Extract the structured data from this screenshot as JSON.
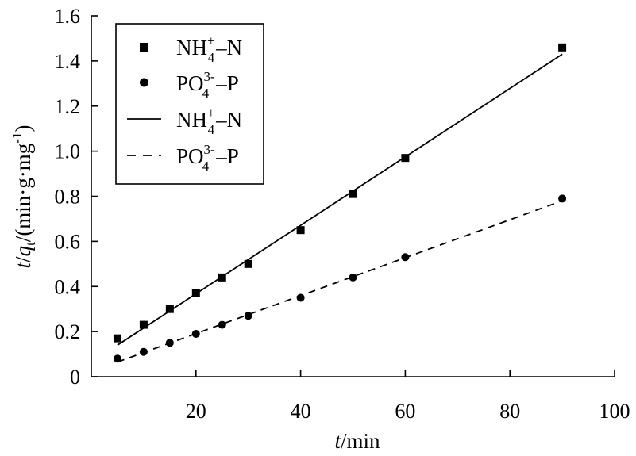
{
  "chart_data": {
    "type": "scatter",
    "title": "",
    "xlabel": {
      "var": "t",
      "unit": "/min"
    },
    "ylabel": {
      "var": "t",
      "slash": "/",
      "q": "q",
      "sub": "t",
      "unit": "/(min·g·mg",
      "sup": "-1",
      "close": ")"
    },
    "xlim": [
      0,
      100
    ],
    "ylim": [
      0,
      1.6
    ],
    "x_ticks": [
      20,
      40,
      60,
      80,
      100
    ],
    "x_tick_labels": [
      "20",
      "40",
      "60",
      "80",
      "100"
    ],
    "y_ticks": [
      0,
      0.2,
      0.4,
      0.6,
      0.8,
      1.0,
      1.2,
      1.4,
      1.6
    ],
    "y_tick_labels": [
      "0",
      "0.2",
      "0.4",
      "0.6",
      "0.8",
      "1.0",
      "1.2",
      "1.4",
      "1.6"
    ],
    "grid": false,
    "legend_position": "top-left",
    "series": [
      {
        "name": "NH4+ –N",
        "label_parts": {
          "base": "NH",
          "sup": "+",
          "sub": "4",
          "suffix": "–N"
        },
        "kind": "points",
        "marker": "square",
        "x": [
          5,
          10,
          15,
          20,
          25,
          30,
          40,
          50,
          60,
          90
        ],
        "y": [
          0.17,
          0.23,
          0.3,
          0.37,
          0.44,
          0.5,
          0.65,
          0.81,
          0.97,
          1.46
        ]
      },
      {
        "name": "PO43- –P",
        "label_parts": {
          "base": "PO",
          "sup": "3-",
          "sub": "4",
          "suffix": "–P"
        },
        "kind": "points",
        "marker": "circle",
        "x": [
          5,
          10,
          15,
          20,
          25,
          30,
          40,
          50,
          60,
          90
        ],
        "y": [
          0.08,
          0.11,
          0.15,
          0.19,
          0.23,
          0.27,
          0.35,
          0.44,
          0.53,
          0.79
        ]
      },
      {
        "name": "NH4+ –N",
        "label_parts": {
          "base": "NH",
          "sup": "+",
          "sub": "4",
          "suffix": "–N"
        },
        "kind": "fit-line",
        "style": "solid",
        "x": [
          5,
          90
        ],
        "y": [
          0.14,
          1.43
        ]
      },
      {
        "name": "PO43- –P",
        "label_parts": {
          "base": "PO",
          "sup": "3-",
          "sub": "4",
          "suffix": "–P"
        },
        "kind": "fit-line",
        "style": "dashed",
        "x": [
          5,
          90
        ],
        "y": [
          0.065,
          0.78
        ]
      }
    ],
    "colors": {
      "ink": "#000000",
      "background": "#ffffff"
    }
  }
}
